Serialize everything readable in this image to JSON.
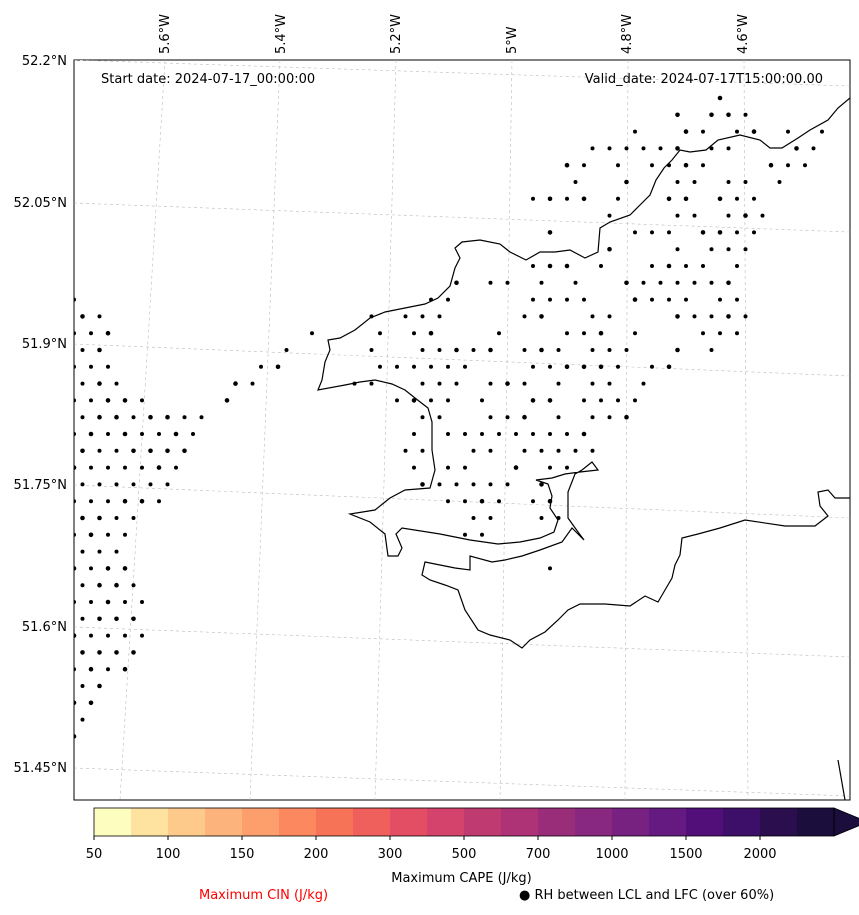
{
  "map": {
    "start_date": "Start date: 2024-07-17_00:00:00",
    "valid_date": "Valid_date: 2024-07-17T15:00:00.00",
    "lon_labels": [
      "5.6°W",
      "5.4°W",
      "5.2°W",
      "5°W",
      "4.8°W",
      "4.6°W"
    ],
    "lat_labels": [
      "52.2°N",
      "52.05°N",
      "51.9°N",
      "51.75°N",
      "51.6°N",
      "51.45°N"
    ],
    "colors": {
      "coast": "#000000",
      "grid": "#bbbbbb",
      "dots": "#000000"
    }
  },
  "colorbar": {
    "title": "Maximum CAPE (J/kg)",
    "ticks": [
      "50",
      "100",
      "150",
      "200",
      "300",
      "500",
      "700",
      "1000",
      "1500",
      "2000"
    ],
    "colors": [
      "#fdfdbf",
      "#fde2a0",
      "#fdca8c",
      "#fdb47c",
      "#fd9e6d",
      "#fc8860",
      "#f77358",
      "#ef5f5c",
      "#e34e64",
      "#d3436b",
      "#c03a72",
      "#ad3376",
      "#9a2d7a",
      "#882881",
      "#772181",
      "#641a80",
      "#520f7a",
      "#3e0f68",
      "#2a0e4e",
      "#1b0d3c"
    ]
  },
  "legend": {
    "cin_label": "Maximum CIN (J/kg)",
    "cin_color": "#ff0000",
    "rh_label": "● RH between LCL and LFC (over 60%)"
  }
}
